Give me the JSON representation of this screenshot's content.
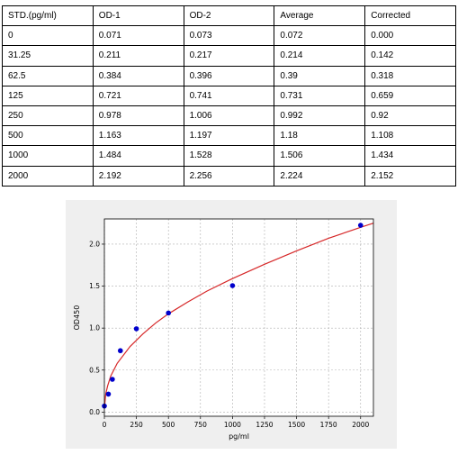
{
  "table": {
    "headers": [
      "STD.(pg/ml)",
      "OD-1",
      "OD-2",
      "Average",
      "Corrected"
    ],
    "rows": [
      [
        "0",
        "0.071",
        "0.073",
        "0.072",
        "0.000"
      ],
      [
        "31.25",
        "0.211",
        "0.217",
        "0.214",
        "0.142"
      ],
      [
        "62.5",
        "0.384",
        "0.396",
        "0.39",
        "0.318"
      ],
      [
        "125",
        "0.721",
        "0.741",
        "0.731",
        "0.659"
      ],
      [
        "250",
        "0.978",
        "1.006",
        "0.992",
        "0.92"
      ],
      [
        "500",
        "1.163",
        "1.197",
        "1.18",
        "1.108"
      ],
      [
        "1000",
        "1.484",
        "1.528",
        "1.506",
        "1.434"
      ],
      [
        "2000",
        "2.192",
        "2.256",
        "2.224",
        "2.152"
      ]
    ]
  },
  "chart_data": {
    "type": "scatter",
    "title": "",
    "xlabel": "pg/ml",
    "ylabel": "OD450",
    "xlim": [
      0,
      2100
    ],
    "ylim": [
      -0.05,
      2.3
    ],
    "xticks": [
      0,
      250,
      500,
      750,
      1000,
      1250,
      1500,
      1750,
      2000
    ],
    "yticks": [
      0.0,
      0.5,
      1.0,
      1.5,
      2.0
    ],
    "ytick_labels": [
      "0.0",
      "0.5",
      "1.0",
      "1.5",
      "2.0"
    ],
    "grid": true,
    "legend": "none",
    "series": [
      {
        "kind": "points",
        "color": "#0000cc",
        "x": [
          0,
          31.25,
          62.5,
          125,
          250,
          500,
          1000,
          2000
        ],
        "y": [
          0.072,
          0.214,
          0.39,
          0.731,
          0.992,
          1.18,
          1.506,
          2.224
        ]
      },
      {
        "kind": "fit-curve",
        "color": "#d62728",
        "x": [
          0,
          10,
          25,
          50,
          100,
          200,
          300,
          400,
          500,
          650,
          800,
          1000,
          1250,
          1500,
          1750,
          2000,
          2100
        ],
        "y": [
          0.04,
          0.21,
          0.31,
          0.43,
          0.58,
          0.78,
          0.93,
          1.06,
          1.17,
          1.31,
          1.44,
          1.59,
          1.76,
          1.92,
          2.07,
          2.2,
          2.25
        ]
      }
    ],
    "colors": {
      "panel_background": "#efefef",
      "plot_background": "#ffffff",
      "grid": "#b0b0b0"
    }
  }
}
